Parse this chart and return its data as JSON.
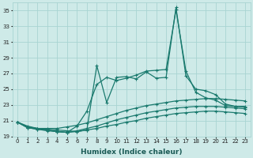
{
  "xlabel": "Humidex (Indice chaleur)",
  "bg_color": "#ceeae8",
  "grid_color": "#a8d4d2",
  "line_color": "#1a7a6e",
  "xlim": [
    -0.5,
    23.5
  ],
  "ylim": [
    19,
    36
  ],
  "yticks": [
    19,
    21,
    23,
    25,
    27,
    29,
    31,
    33,
    35
  ],
  "xticks": [
    0,
    1,
    2,
    3,
    4,
    5,
    6,
    7,
    8,
    9,
    10,
    11,
    12,
    13,
    14,
    15,
    16,
    17,
    18,
    19,
    20,
    21,
    22,
    23
  ],
  "series": [
    [
      20.8,
      20.3,
      20.0,
      19.9,
      19.8,
      19.7,
      19.6,
      19.8,
      28.0,
      23.3,
      26.5,
      26.6,
      26.3,
      27.2,
      26.4,
      26.5,
      35.4,
      26.7,
      25.0,
      24.8,
      24.3,
      23.1,
      22.8,
      22.7
    ],
    [
      20.8,
      20.2,
      20.0,
      19.8,
      19.6,
      19.5,
      20.3,
      22.2,
      25.6,
      26.5,
      26.1,
      26.4,
      26.8,
      27.3,
      27.4,
      27.5,
      35.1,
      27.3,
      24.6,
      23.9,
      23.6,
      22.9,
      22.8,
      22.8
    ],
    [
      20.8,
      20.1,
      20.0,
      20.0,
      20.0,
      20.2,
      20.4,
      20.7,
      21.1,
      21.5,
      21.9,
      22.3,
      22.6,
      22.9,
      23.1,
      23.3,
      23.5,
      23.6,
      23.7,
      23.8,
      23.8,
      23.7,
      23.6,
      23.5
    ],
    [
      20.8,
      20.1,
      19.9,
      19.8,
      19.6,
      19.5,
      19.7,
      20.0,
      20.3,
      20.7,
      21.1,
      21.4,
      21.7,
      22.0,
      22.2,
      22.4,
      22.6,
      22.7,
      22.8,
      22.8,
      22.8,
      22.7,
      22.6,
      22.5
    ],
    [
      20.8,
      20.1,
      19.9,
      19.7,
      19.6,
      19.5,
      19.6,
      19.8,
      20.0,
      20.3,
      20.5,
      20.8,
      21.0,
      21.3,
      21.5,
      21.7,
      21.9,
      22.0,
      22.1,
      22.2,
      22.2,
      22.1,
      22.0,
      21.9
    ]
  ],
  "marker": "+",
  "markersize": 3.5,
  "linewidth": 0.9
}
